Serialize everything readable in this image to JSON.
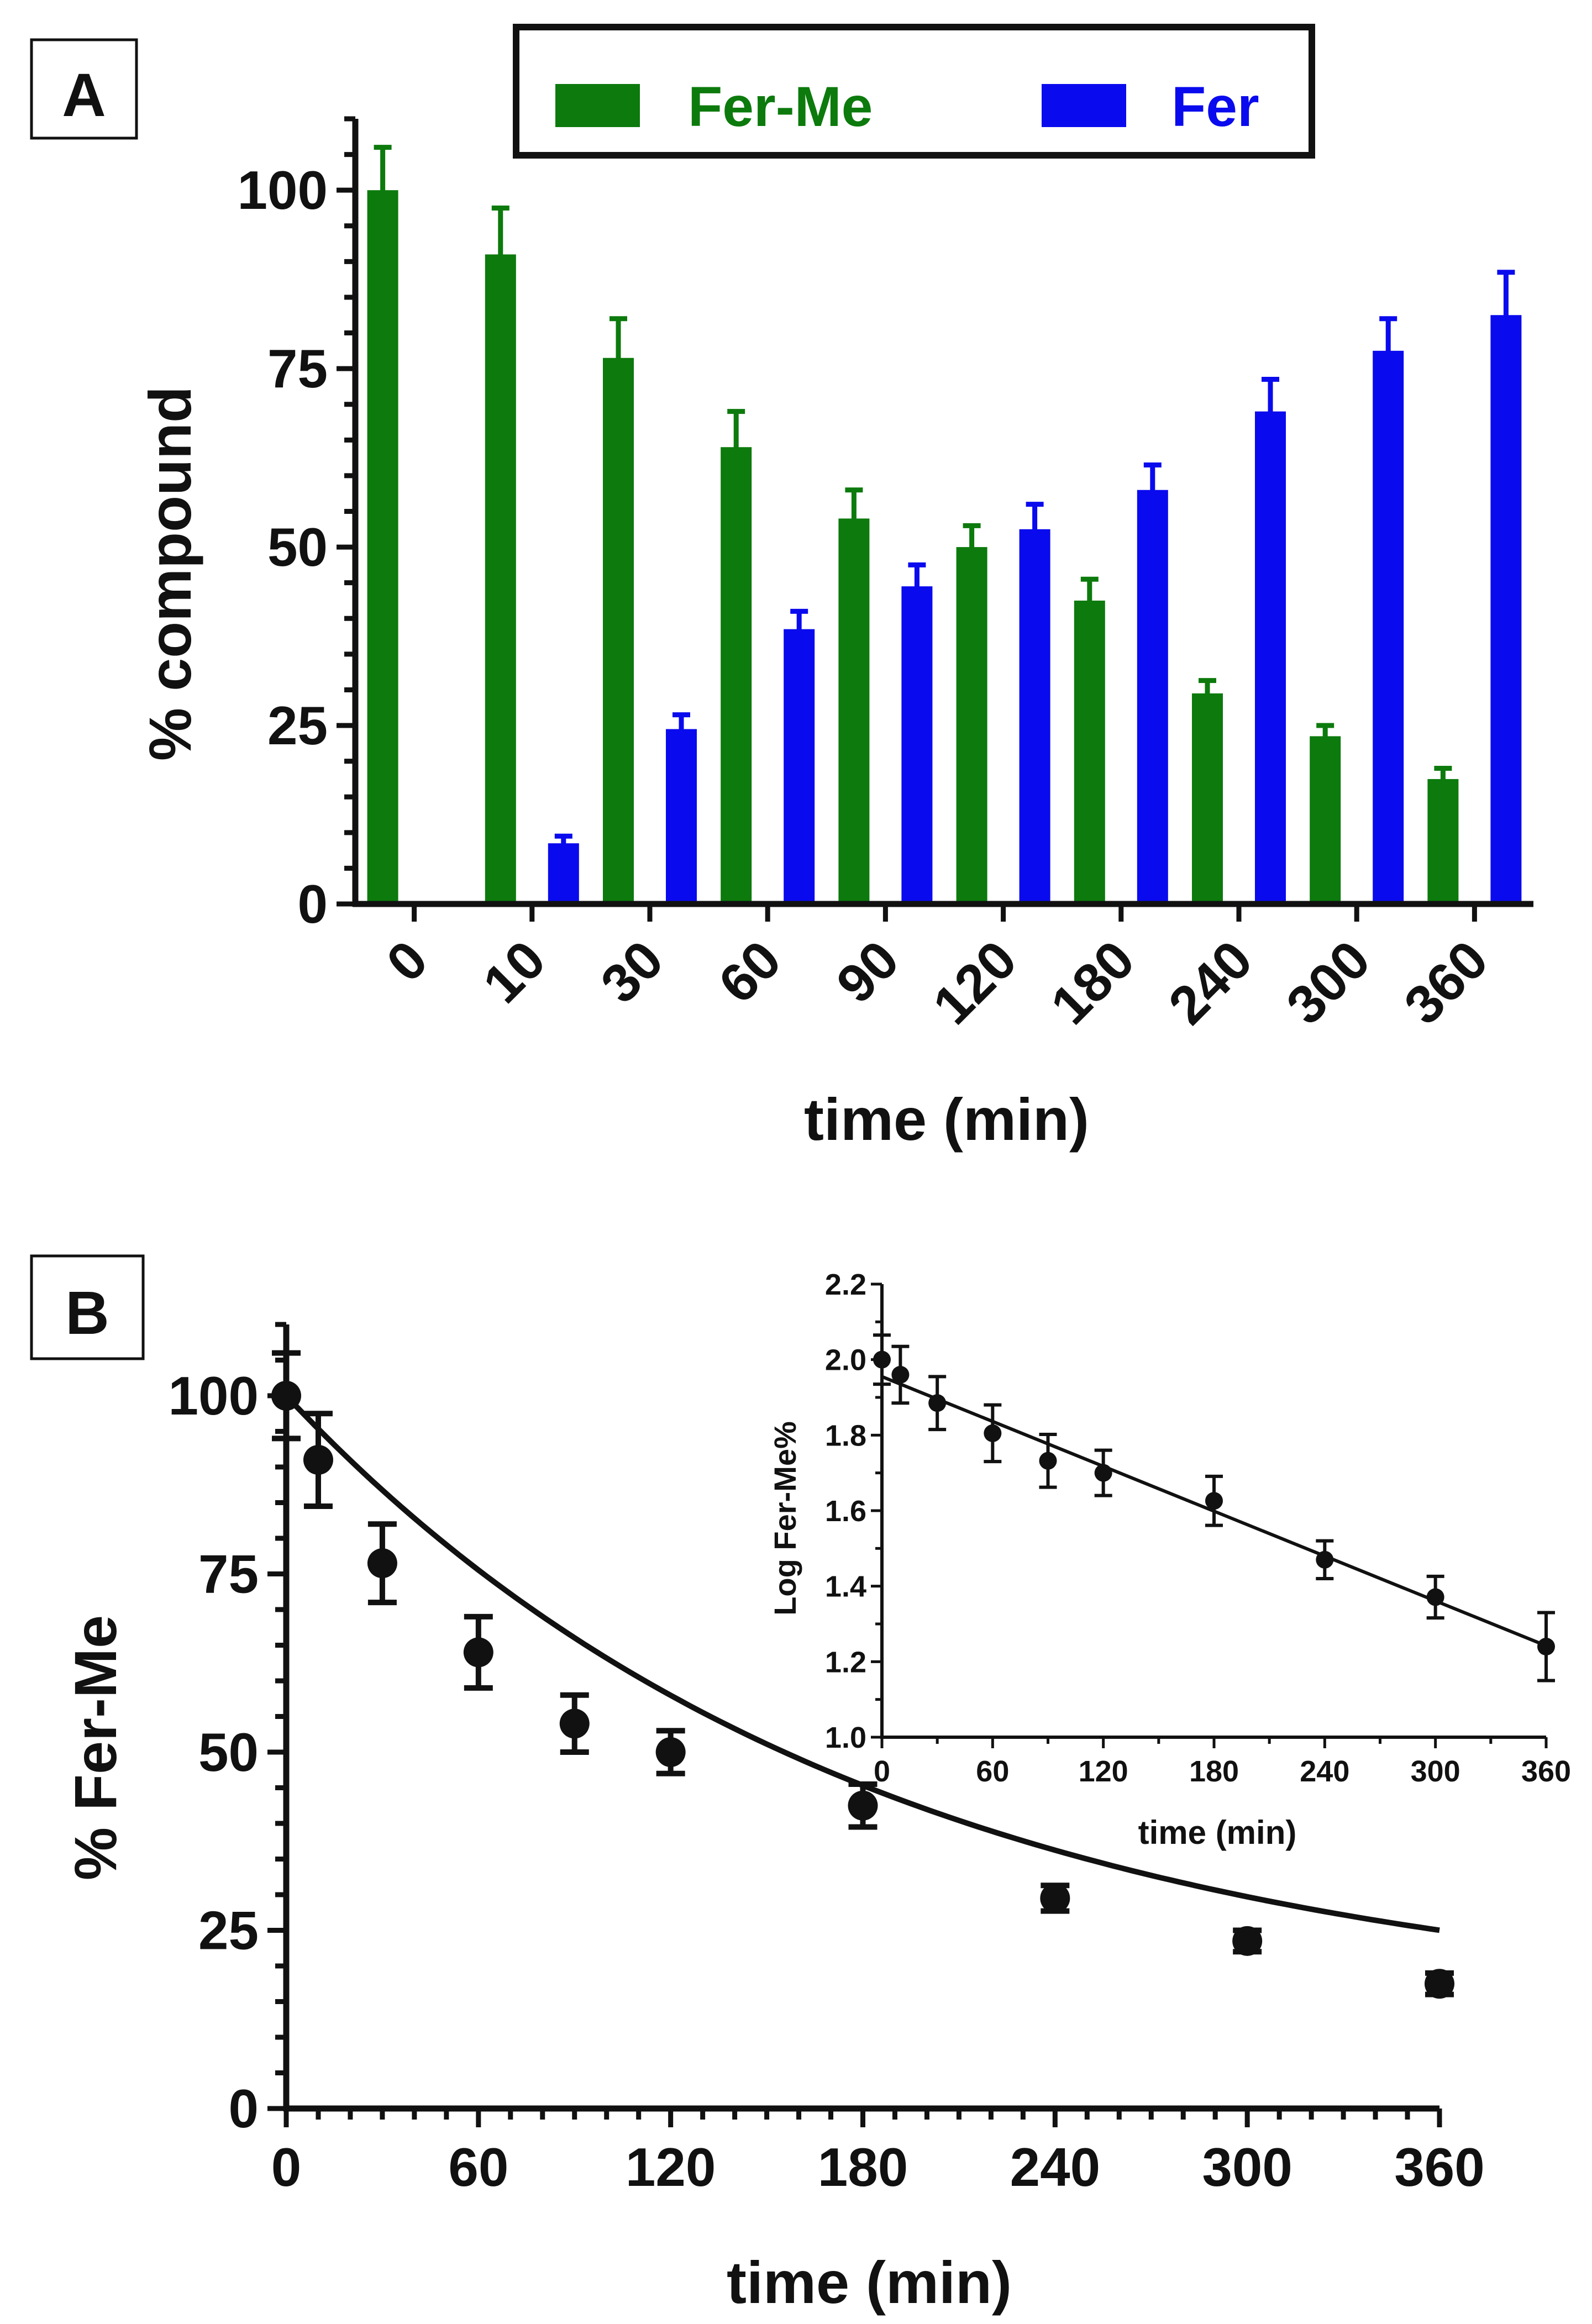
{
  "colors": {
    "ferme": "#0c7a0c",
    "fer": "#0a0aee",
    "axis": "#111111"
  },
  "panels": {
    "a_label": "A",
    "b_label": "B"
  },
  "chart_data": [
    {
      "type": "bar",
      "panel": "A",
      "ylabel": "% compound",
      "xlabel": "time (min)",
      "ylim": [
        0,
        110
      ],
      "yticks": [
        0,
        25,
        50,
        75,
        100
      ],
      "categories": [
        "0",
        "10",
        "30",
        "60",
        "90",
        "120",
        "180",
        "240",
        "300",
        "360"
      ],
      "legend": {
        "position": "top",
        "entries": [
          "Fer-Me",
          "Fer"
        ]
      },
      "series": [
        {
          "name": "Fer-Me",
          "color": "#0c7a0c",
          "values": [
            100,
            91,
            76.5,
            64,
            54,
            50,
            42.5,
            29.5,
            23.5,
            17.5
          ],
          "errors": [
            6,
            6.5,
            5.5,
            5,
            4,
            3,
            3,
            1.8,
            1.5,
            1.5
          ]
        },
        {
          "name": "Fer",
          "color": "#0a0aee",
          "values": [
            0,
            8.5,
            24.5,
            38.5,
            44.5,
            52.5,
            58,
            69,
            77.5,
            82.5
          ],
          "errors": [
            0,
            1,
            2,
            2.5,
            3,
            3.5,
            3.5,
            4.5,
            4.5,
            6
          ]
        }
      ]
    },
    {
      "type": "scatter",
      "panel": "B",
      "ylabel": "% Fer-Me",
      "xlabel": "time (min)",
      "xlim": [
        0,
        360
      ],
      "ylim": [
        0,
        110
      ],
      "xticks": [
        0,
        60,
        120,
        180,
        240,
        300,
        360
      ],
      "yticks": [
        0,
        25,
        50,
        75,
        100
      ],
      "x": [
        0,
        10,
        30,
        60,
        90,
        120,
        180,
        240,
        300,
        360
      ],
      "y": [
        100,
        91,
        76.5,
        64,
        54,
        50,
        42.5,
        29.5,
        23.5,
        17.5
      ],
      "errors": [
        6,
        6.5,
        5.5,
        5,
        4,
        3,
        3,
        1.8,
        1.5,
        1.5
      ],
      "fit": {
        "model": "one-phase decay",
        "y0": 100,
        "plateau": 13,
        "k": 0.0055
      }
    },
    {
      "type": "scatter",
      "panel": "B-inset",
      "ylabel": "Log Fer-Me%",
      "xlabel": "time (min)",
      "xlim": [
        0,
        360
      ],
      "ylim": [
        1.0,
        2.2
      ],
      "xticks": [
        0,
        60,
        120,
        180,
        240,
        300,
        360
      ],
      "yticks": [
        "1.0",
        "1.2",
        "1.4",
        "1.6",
        "1.8",
        "2.0",
        "2.2"
      ],
      "x": [
        0,
        10,
        30,
        60,
        90,
        120,
        180,
        240,
        300,
        360
      ],
      "y": [
        2.0,
        1.96,
        1.885,
        1.805,
        1.732,
        1.7,
        1.626,
        1.47,
        1.371,
        1.24
      ],
      "errors": [
        0.065,
        0.075,
        0.07,
        0.075,
        0.07,
        0.06,
        0.065,
        0.05,
        0.055,
        0.09
      ],
      "fit": {
        "model": "linear",
        "intercept": 1.955,
        "slope": -0.00198
      }
    }
  ]
}
